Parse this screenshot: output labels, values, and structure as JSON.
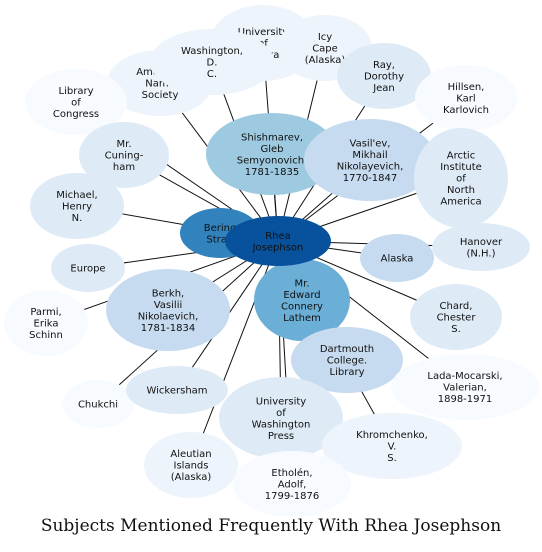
{
  "title": "Subjects Mentioned Frequently With Rhea Josephson",
  "center": "rhea",
  "colors": {
    "edge": "#111111",
    "c1": "#08519c",
    "c2": "#3182bd",
    "c3": "#6baed6",
    "c4": "#9ecae1",
    "c5": "#c6dbef",
    "c6": "#deebf7",
    "c7": "#eef4fb",
    "c8": "#f7fbff"
  },
  "nodes": [
    {
      "id": "university-of-alaska",
      "label": [
        "University",
        "of",
        "Alaska"
      ],
      "shade": "c7"
    },
    {
      "id": "icy-cape",
      "label": [
        "Icy",
        "Cape",
        "(Alaska)"
      ],
      "shade": "c7"
    },
    {
      "id": "american-name-society",
      "label": [
        "American",
        "Name",
        "Society"
      ],
      "shade": "c7"
    },
    {
      "id": "washington-dc",
      "label": [
        "Washington,",
        "D.",
        "C."
      ],
      "shade": "c7"
    },
    {
      "id": "ray-dorothy-jean",
      "label": [
        "Ray,",
        "Dorothy",
        "Jean"
      ],
      "shade": "c6"
    },
    {
      "id": "library-of-congress",
      "label": [
        "Library",
        "of",
        "Congress"
      ],
      "shade": "c8"
    },
    {
      "id": "hillsen-karl",
      "label": [
        "Hillsen,",
        "Karl",
        "Karlovich"
      ],
      "shade": "c8"
    },
    {
      "id": "shishmarev",
      "label": [
        "Shishmarev,",
        "Gleb",
        "Semyonovich,",
        "1781-1835"
      ],
      "shade": "c4"
    },
    {
      "id": "vasilev",
      "label": [
        "Vasil'ev,",
        "Mikhail",
        "Nikolayevich,",
        "1770-1847"
      ],
      "shade": "c5"
    },
    {
      "id": "mr-cuningham",
      "label": [
        "Mr.",
        "Cuning-",
        "ham"
      ],
      "shade": "c6"
    },
    {
      "id": "arctic-institute",
      "label": [
        "Arctic",
        "Institute",
        "of",
        "North",
        "America"
      ],
      "shade": "c6"
    },
    {
      "id": "michael-henry",
      "label": [
        "Michael,",
        "Henry",
        "N."
      ],
      "shade": "c6"
    },
    {
      "id": "bering-strait",
      "label": [
        "Bering",
        "Strait"
      ],
      "shade": "c2"
    },
    {
      "id": "rhea",
      "label": [
        "Rhea",
        "Josephson"
      ],
      "shade": "c1"
    },
    {
      "id": "hanover",
      "label": [
        "Hanover",
        "(N.H.)"
      ],
      "shade": "c6"
    },
    {
      "id": "alaska",
      "label": [
        "Alaska"
      ],
      "shade": "c5"
    },
    {
      "id": "europe",
      "label": [
        "Europe"
      ],
      "shade": "c6"
    },
    {
      "id": "mr-edward-lathem",
      "label": [
        "Mr.",
        "Edward",
        "Connery",
        "Lathem"
      ],
      "shade": "c3"
    },
    {
      "id": "berkh",
      "label": [
        "Berkh,",
        "Vasilii",
        "Nikolaevich,",
        "1781-1834"
      ],
      "shade": "c5"
    },
    {
      "id": "parmi-erika",
      "label": [
        "Parmi,",
        "Erika",
        "Schinn"
      ],
      "shade": "c8"
    },
    {
      "id": "chard-chester",
      "label": [
        "Chard,",
        "Chester",
        "S."
      ],
      "shade": "c6"
    },
    {
      "id": "dartmouth-library",
      "label": [
        "Dartmouth",
        "College.",
        "Library"
      ],
      "shade": "c5"
    },
    {
      "id": "lada-mocarski",
      "label": [
        "Lada-Mocarski,",
        "Valerian,",
        "1898-1971"
      ],
      "shade": "c8"
    },
    {
      "id": "chukchi",
      "label": [
        "Chukchi"
      ],
      "shade": "c8"
    },
    {
      "id": "wickersham",
      "label": [
        "Wickersham"
      ],
      "shade": "c6"
    },
    {
      "id": "uw-press",
      "label": [
        "University",
        "of",
        "Washington",
        "Press"
      ],
      "shade": "c6"
    },
    {
      "id": "khromchenko",
      "label": [
        "Khromchenko,",
        "V.",
        "S."
      ],
      "shade": "c7"
    },
    {
      "id": "aleutian-islands",
      "label": [
        "Aleutian",
        "Islands",
        "(Alaska)"
      ],
      "shade": "c7"
    },
    {
      "id": "etholen",
      "label": [
        "Etholén,",
        "Adolf,",
        "1799-1876"
      ],
      "shade": "c8"
    }
  ]
}
